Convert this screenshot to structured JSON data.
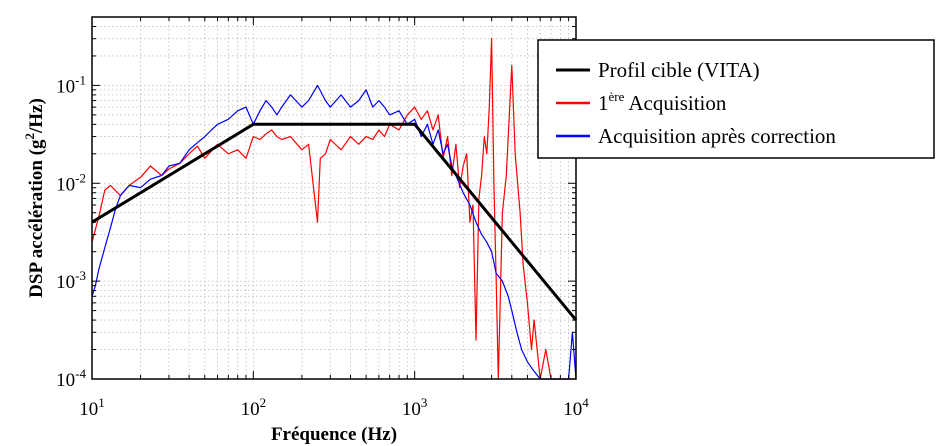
{
  "chart_data": {
    "type": "line",
    "title": "",
    "xlabel": "Fréquence (Hz)",
    "ylabel": "DSP accélération (g²/Hz)",
    "ylabel_parts": {
      "before": "DSP accélération (g",
      "sup": "2",
      "after": "/Hz)"
    },
    "x_scale": "log",
    "y_scale": "log",
    "xlim": [
      10,
      10000
    ],
    "ylim": [
      0.0001,
      0.5
    ],
    "grid": true,
    "legend_position": "right",
    "x_ticks": [
      {
        "value": 10,
        "base": "10",
        "exp": "1"
      },
      {
        "value": 100,
        "base": "10",
        "exp": "2"
      },
      {
        "value": 1000,
        "base": "10",
        "exp": "3"
      },
      {
        "value": 10000,
        "base": "10",
        "exp": "4"
      }
    ],
    "y_ticks": [
      {
        "value": 0.0001,
        "base": "10",
        "exp": "-4"
      },
      {
        "value": 0.001,
        "base": "10",
        "exp": "-3"
      },
      {
        "value": 0.01,
        "base": "10",
        "exp": "-2"
      },
      {
        "value": 0.1,
        "base": "10",
        "exp": "-1"
      }
    ],
    "series": [
      {
        "name": "Profil cible (VITA)",
        "legend": {
          "text": "Profil cible (VITA)"
        },
        "color": "#000000",
        "x": [
          10,
          100,
          1000,
          10000
        ],
        "y": [
          0.004,
          0.04,
          0.04,
          0.0004
        ]
      },
      {
        "name": "1ère Acquisition",
        "legend": {
          "sup": "ère",
          "base": "1",
          "text": "Acquisition"
        },
        "color": "#ff0000",
        "x": [
          10,
          11,
          12,
          13,
          15,
          17,
          20,
          23,
          27,
          30,
          35,
          40,
          45,
          50,
          60,
          70,
          80,
          90,
          100,
          110,
          120,
          130,
          140,
          150,
          170,
          200,
          220,
          250,
          260,
          280,
          300,
          350,
          400,
          450,
          500,
          550,
          600,
          650,
          700,
          800,
          900,
          1000,
          1100,
          1200,
          1300,
          1400,
          1500,
          1600,
          1700,
          1800,
          1900,
          2000,
          2100,
          2200,
          2300,
          2400,
          2500,
          2600,
          2700,
          2800,
          2900,
          3000,
          3100,
          3200,
          3300,
          3500,
          3700,
          4000,
          4200,
          4500,
          4700,
          5000,
          5300,
          5500,
          6000,
          6500,
          7000,
          7500,
          8000,
          8500,
          9000,
          9500,
          10000
        ],
        "y": [
          0.0025,
          0.0045,
          0.0085,
          0.0095,
          0.0075,
          0.0095,
          0.0115,
          0.015,
          0.012,
          0.014,
          0.016,
          0.02,
          0.024,
          0.018,
          0.025,
          0.02,
          0.022,
          0.018,
          0.03,
          0.028,
          0.032,
          0.035,
          0.03,
          0.028,
          0.03,
          0.022,
          0.025,
          0.004,
          0.018,
          0.02,
          0.028,
          0.022,
          0.03,
          0.025,
          0.03,
          0.028,
          0.035,
          0.03,
          0.04,
          0.035,
          0.05,
          0.06,
          0.045,
          0.055,
          0.035,
          0.05,
          0.018,
          0.03,
          0.012,
          0.025,
          0.009,
          0.015,
          0.02,
          0.004,
          0.006,
          0.00025,
          0.007,
          0.012,
          0.03,
          0.02,
          0.06,
          0.3,
          0.01,
          0.001,
          0.0001,
          0.005,
          0.012,
          0.16,
          0.02,
          0.005,
          0.0015,
          0.0006,
          0.0002,
          0.0004,
          0.0001,
          0.0002,
          0.0001,
          0.0001,
          0.0001,
          0.0001,
          0.0001,
          0.0001,
          0.0001
        ]
      },
      {
        "name": "Acquisition après correction",
        "legend": {
          "text": "Acquisition après correction"
        },
        "color": "#0000ff",
        "x": [
          10,
          10.5,
          11,
          12,
          13,
          14,
          15,
          17,
          20,
          23,
          27,
          30,
          35,
          40,
          45,
          50,
          55,
          60,
          70,
          80,
          90,
          100,
          110,
          120,
          130,
          140,
          150,
          170,
          200,
          220,
          250,
          280,
          300,
          350,
          400,
          450,
          500,
          550,
          600,
          650,
          700,
          800,
          900,
          1000,
          1100,
          1200,
          1300,
          1400,
          1500,
          1600,
          1700,
          1800,
          2000,
          2200,
          2400,
          2600,
          2800,
          3000,
          3200,
          3500,
          3800,
          4000,
          4300,
          4600,
          5000,
          5500,
          6000,
          6500,
          7000,
          7500,
          8000,
          8500,
          9000,
          9500,
          10000
        ],
        "y": [
          0.0007,
          0.0009,
          0.0013,
          0.0022,
          0.0035,
          0.0055,
          0.0075,
          0.0095,
          0.009,
          0.011,
          0.012,
          0.015,
          0.016,
          0.022,
          0.026,
          0.03,
          0.035,
          0.04,
          0.045,
          0.055,
          0.06,
          0.04,
          0.055,
          0.07,
          0.06,
          0.05,
          0.06,
          0.08,
          0.06,
          0.07,
          0.1,
          0.07,
          0.06,
          0.08,
          0.06,
          0.07,
          0.09,
          0.06,
          0.07,
          0.06,
          0.05,
          0.055,
          0.04,
          0.045,
          0.03,
          0.04,
          0.025,
          0.035,
          0.02,
          0.025,
          0.015,
          0.012,
          0.008,
          0.006,
          0.004,
          0.003,
          0.0025,
          0.002,
          0.0012,
          0.001,
          0.0007,
          0.0005,
          0.0003,
          0.0002,
          0.00015,
          0.00012,
          0.0001,
          0.0001,
          0.0001,
          0.0001,
          0.0001,
          0.0001,
          0.0001,
          0.0003,
          0.0001
        ]
      }
    ]
  }
}
